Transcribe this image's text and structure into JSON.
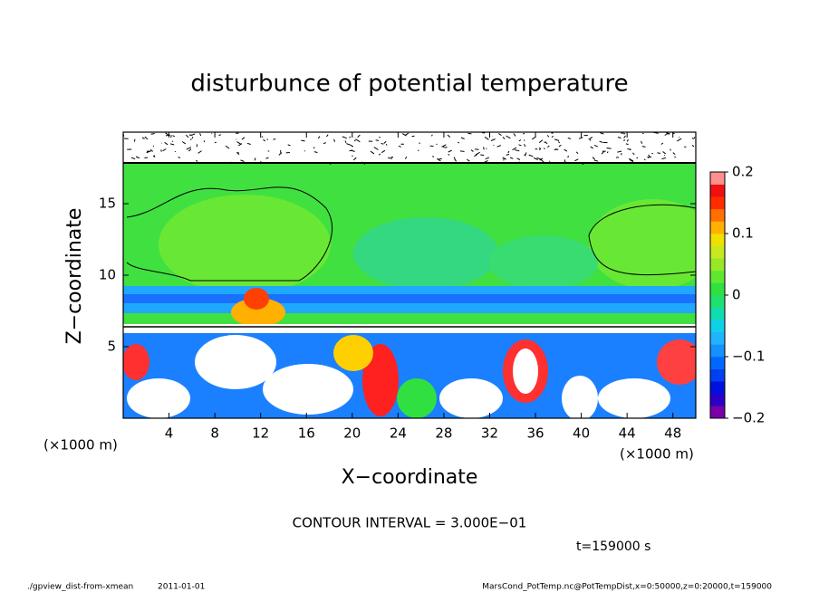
{
  "chart_data": {
    "type": "contour",
    "title": "disturbunce of potential temperature",
    "xlabel": "X−coordinate",
    "ylabel": "Z−coordinate",
    "x_unit": "(×1000 m)",
    "y_unit": "(×1000 m)",
    "xlim": [
      0,
      50
    ],
    "ylim": [
      0,
      20
    ],
    "xticks": [
      4,
      8,
      12,
      16,
      20,
      24,
      28,
      32,
      36,
      40,
      44,
      48
    ],
    "yticks": [
      5,
      10,
      15
    ],
    "colorbar_lim": [
      -0.2,
      0.2
    ],
    "colorbar_ticks": [
      {
        "value": -0.2,
        "label": "−0.2"
      },
      {
        "value": -0.1,
        "label": "−0.1"
      },
      0,
      0.1,
      0.2
    ],
    "colormap": [
      "#7a00a8",
      "#2a00c8",
      "#0010e0",
      "#0040f0",
      "#0068ff",
      "#1590ff",
      "#20b4ff",
      "#10d0e8",
      "#10dcb0",
      "#20e070",
      "#30e040",
      "#60e830",
      "#98e828",
      "#c8e820",
      "#f0e000",
      "#ffb000",
      "#ff7000",
      "#ff2c00",
      "#f01010",
      "#ff9090"
    ],
    "contour_interval": "CONTOUR INTERVAL = 3.000E−01",
    "time": "t=159000 s",
    "footer_left": "./gpview_dist-from-xmean",
    "footer_date": "2011-01-01",
    "footer_right": "MarsCond_PotTemp.nc@PotTempDist,x=0:50000,z=0:20000,t=159000"
  }
}
